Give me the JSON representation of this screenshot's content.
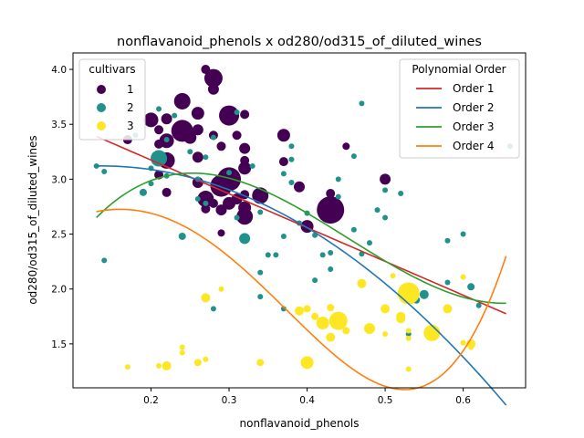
{
  "chart_data": {
    "type": "scatter",
    "title": "nonflavanoid_phenols x od280/od315_of_diluted_wines",
    "xlabel": "nonflavanoid_phenols",
    "ylabel": "od280/od315_of_diluted_wines",
    "xlim": [
      0.1,
      0.68
    ],
    "ylim": [
      1.1,
      4.15
    ],
    "xticks": [
      "0.2",
      "0.3",
      "0.4",
      "0.5",
      "0.6"
    ],
    "yticks": [
      "1.5",
      "2.0",
      "2.5",
      "3.0",
      "3.5",
      "4.0"
    ],
    "grid": false,
    "scatter_legend": {
      "title": "cultivars",
      "placement": "upper-left",
      "entries": [
        {
          "label": "1",
          "color": "#440154"
        },
        {
          "label": "2",
          "color": "#21918c"
        },
        {
          "label": "3",
          "color": "#fde725"
        }
      ]
    },
    "fit_legend": {
      "title": "Polynomial Order",
      "placement": "upper-right",
      "entries": [
        {
          "label": "Order 1",
          "color": "#d62728"
        },
        {
          "label": "Order 2",
          "color": "#1f77b4"
        },
        {
          "label": "Order 3",
          "color": "#2ca02c"
        },
        {
          "label": "Order 4",
          "color": "#ff7f0e"
        }
      ]
    },
    "series": [
      {
        "name": "1",
        "color": "#440154",
        "points": [
          [
            0.27,
            4.0,
            5
          ],
          [
            0.28,
            3.92,
            10
          ],
          [
            0.28,
            3.82,
            6
          ],
          [
            0.24,
            3.71,
            9
          ],
          [
            0.26,
            3.6,
            7
          ],
          [
            0.32,
            3.59,
            5
          ],
          [
            0.3,
            3.58,
            11
          ],
          [
            0.2,
            3.54,
            8
          ],
          [
            0.22,
            3.55,
            6
          ],
          [
            0.21,
            3.45,
            5
          ],
          [
            0.26,
            3.45,
            6
          ],
          [
            0.24,
            3.44,
            12
          ],
          [
            0.28,
            3.4,
            5
          ],
          [
            0.31,
            3.4,
            5
          ],
          [
            0.37,
            3.4,
            7
          ],
          [
            0.22,
            3.35,
            8
          ],
          [
            0.21,
            3.32,
            5
          ],
          [
            0.29,
            3.3,
            5
          ],
          [
            0.32,
            3.28,
            6
          ],
          [
            0.17,
            3.36,
            5
          ],
          [
            0.25,
            3.38,
            7
          ],
          [
            0.26,
            3.2,
            6
          ],
          [
            0.32,
            3.17,
            5
          ],
          [
            0.22,
            3.17,
            9
          ],
          [
            0.37,
            3.16,
            5
          ],
          [
            0.32,
            3.1,
            7
          ],
          [
            0.21,
            3.04,
            5
          ],
          [
            0.29,
            3.0,
            5
          ],
          [
            0.26,
            2.97,
            6
          ],
          [
            0.3,
            3.0,
            13
          ],
          [
            0.29,
            2.94,
            12
          ],
          [
            0.34,
            2.85,
            9
          ],
          [
            0.32,
            2.86,
            5
          ],
          [
            0.22,
            2.88,
            5
          ],
          [
            0.27,
            2.82,
            9
          ],
          [
            0.31,
            2.82,
            6
          ],
          [
            0.28,
            2.78,
            5
          ],
          [
            0.3,
            2.78,
            7
          ],
          [
            0.32,
            2.74,
            7
          ],
          [
            0.32,
            2.66,
            9
          ],
          [
            0.27,
            2.73,
            5
          ],
          [
            0.29,
            2.72,
            6
          ],
          [
            0.39,
            2.93,
            6
          ],
          [
            0.43,
            2.87,
            5
          ],
          [
            0.43,
            2.78,
            8
          ],
          [
            0.43,
            2.72,
            15
          ],
          [
            0.5,
            3.0,
            6
          ],
          [
            0.45,
            3.3,
            4
          ],
          [
            0.4,
            2.57,
            7
          ],
          [
            0.29,
            2.51,
            4
          ]
        ]
      },
      {
        "name": "2",
        "color": "#21918c",
        "points": [
          [
            0.13,
            3.12,
            3
          ],
          [
            0.14,
            3.07,
            3
          ],
          [
            0.14,
            2.26,
            3
          ],
          [
            0.18,
            3.4,
            3
          ],
          [
            0.2,
            3.1,
            3
          ],
          [
            0.2,
            2.96,
            3
          ],
          [
            0.19,
            2.88,
            4
          ],
          [
            0.23,
            3.58,
            3
          ],
          [
            0.22,
            3.36,
            3
          ],
          [
            0.21,
            3.64,
            3
          ],
          [
            0.21,
            3.19,
            9
          ],
          [
            0.22,
            3.03,
            3
          ],
          [
            0.24,
            2.48,
            4
          ],
          [
            0.25,
            3.25,
            3
          ],
          [
            0.26,
            3.0,
            3
          ],
          [
            0.27,
            3.2,
            3
          ],
          [
            0.26,
            2.82,
            3
          ],
          [
            0.27,
            2.78,
            3
          ],
          [
            0.28,
            1.82,
            3
          ],
          [
            0.28,
            3.38,
            3
          ],
          [
            0.31,
            3.61,
            3
          ],
          [
            0.3,
            3.06,
            3
          ],
          [
            0.31,
            2.65,
            3
          ],
          [
            0.32,
            2.46,
            6
          ],
          [
            0.33,
            3.12,
            3
          ],
          [
            0.34,
            2.15,
            3
          ],
          [
            0.34,
            1.93,
            3
          ],
          [
            0.34,
            2.7,
            3
          ],
          [
            0.35,
            2.31,
            3
          ],
          [
            0.36,
            2.31,
            3
          ],
          [
            0.37,
            2.48,
            3
          ],
          [
            0.37,
            1.82,
            3
          ],
          [
            0.37,
            3.05,
            3
          ],
          [
            0.38,
            3.3,
            3
          ],
          [
            0.38,
            2.97,
            3
          ],
          [
            0.39,
            2.6,
            3
          ],
          [
            0.4,
            2.69,
            3
          ],
          [
            0.41,
            2.49,
            3
          ],
          [
            0.41,
            2.08,
            3
          ],
          [
            0.42,
            2.31,
            3
          ],
          [
            0.43,
            2.18,
            3
          ],
          [
            0.43,
            2.33,
            3
          ],
          [
            0.44,
            2.84,
            3
          ],
          [
            0.46,
            2.54,
            3
          ],
          [
            0.47,
            2.32,
            3
          ],
          [
            0.47,
            3.69,
            3
          ],
          [
            0.48,
            2.42,
            3
          ],
          [
            0.49,
            2.72,
            3
          ],
          [
            0.5,
            2.9,
            3
          ],
          [
            0.5,
            2.65,
            3
          ],
          [
            0.52,
            2.87,
            3
          ],
          [
            0.53,
            1.59,
            3
          ],
          [
            0.54,
            1.9,
            4
          ],
          [
            0.55,
            1.95,
            5
          ],
          [
            0.58,
            2.06,
            3
          ],
          [
            0.58,
            2.44,
            3
          ],
          [
            0.6,
            2.5,
            3
          ],
          [
            0.61,
            2.02,
            4
          ],
          [
            0.62,
            1.85,
            3
          ],
          [
            0.66,
            3.3,
            3
          ],
          [
            0.44,
            3.0,
            3
          ],
          [
            0.46,
            3.21,
            3
          ],
          [
            0.38,
            3.18,
            3
          ]
        ]
      },
      {
        "name": "3",
        "color": "#fde725",
        "points": [
          [
            0.17,
            1.29,
            3
          ],
          [
            0.21,
            1.3,
            3
          ],
          [
            0.22,
            1.3,
            5
          ],
          [
            0.24,
            1.47,
            3
          ],
          [
            0.24,
            1.42,
            3
          ],
          [
            0.26,
            1.33,
            4
          ],
          [
            0.27,
            1.36,
            3
          ],
          [
            0.27,
            1.92,
            5
          ],
          [
            0.29,
            2.0,
            3
          ],
          [
            0.34,
            1.33,
            4
          ],
          [
            0.39,
            1.8,
            5
          ],
          [
            0.4,
            1.82,
            4
          ],
          [
            0.4,
            1.33,
            7
          ],
          [
            0.41,
            1.75,
            4
          ],
          [
            0.42,
            1.69,
            7
          ],
          [
            0.43,
            1.56,
            5
          ],
          [
            0.43,
            1.83,
            4
          ],
          [
            0.44,
            1.71,
            10
          ],
          [
            0.45,
            1.62,
            4
          ],
          [
            0.47,
            2.05,
            5
          ],
          [
            0.48,
            1.64,
            6
          ],
          [
            0.5,
            1.82,
            5
          ],
          [
            0.5,
            1.59,
            3
          ],
          [
            0.51,
            2.12,
            3
          ],
          [
            0.52,
            1.75,
            5
          ],
          [
            0.52,
            1.73,
            5
          ],
          [
            0.53,
            1.96,
            12
          ],
          [
            0.53,
            2.0,
            3
          ],
          [
            0.53,
            1.62,
            3
          ],
          [
            0.53,
            1.27,
            3
          ],
          [
            0.56,
            1.6,
            9
          ],
          [
            0.58,
            1.82,
            5
          ],
          [
            0.6,
            1.51,
            3
          ],
          [
            0.6,
            2.11,
            3
          ],
          [
            0.61,
            1.5,
            5
          ],
          [
            0.61,
            1.47,
            3
          ],
          [
            0.53,
            1.55,
            3
          ]
        ]
      }
    ],
    "fits": [
      {
        "name": "Order 1",
        "color": "#d62728",
        "coefficients": [
          3.79,
          -3.077
        ]
      },
      {
        "name": "Order 2",
        "color": "#1f77b4",
        "coefficients": [
          2.97,
          2.21,
          -8.1
        ]
      },
      {
        "name": "Order 3",
        "color": "#2ca02c",
        "coefficients": [
          1.03,
          18.4,
          -50.5,
          37.2
        ]
      },
      {
        "name": "Order 4",
        "color": "#ff7f0e",
        "coefficients": [
          2.25,
          4.78,
          -1.43,
          -78.8,
          106.9
        ]
      }
    ],
    "fit_range": [
      0.13,
      0.655
    ]
  }
}
